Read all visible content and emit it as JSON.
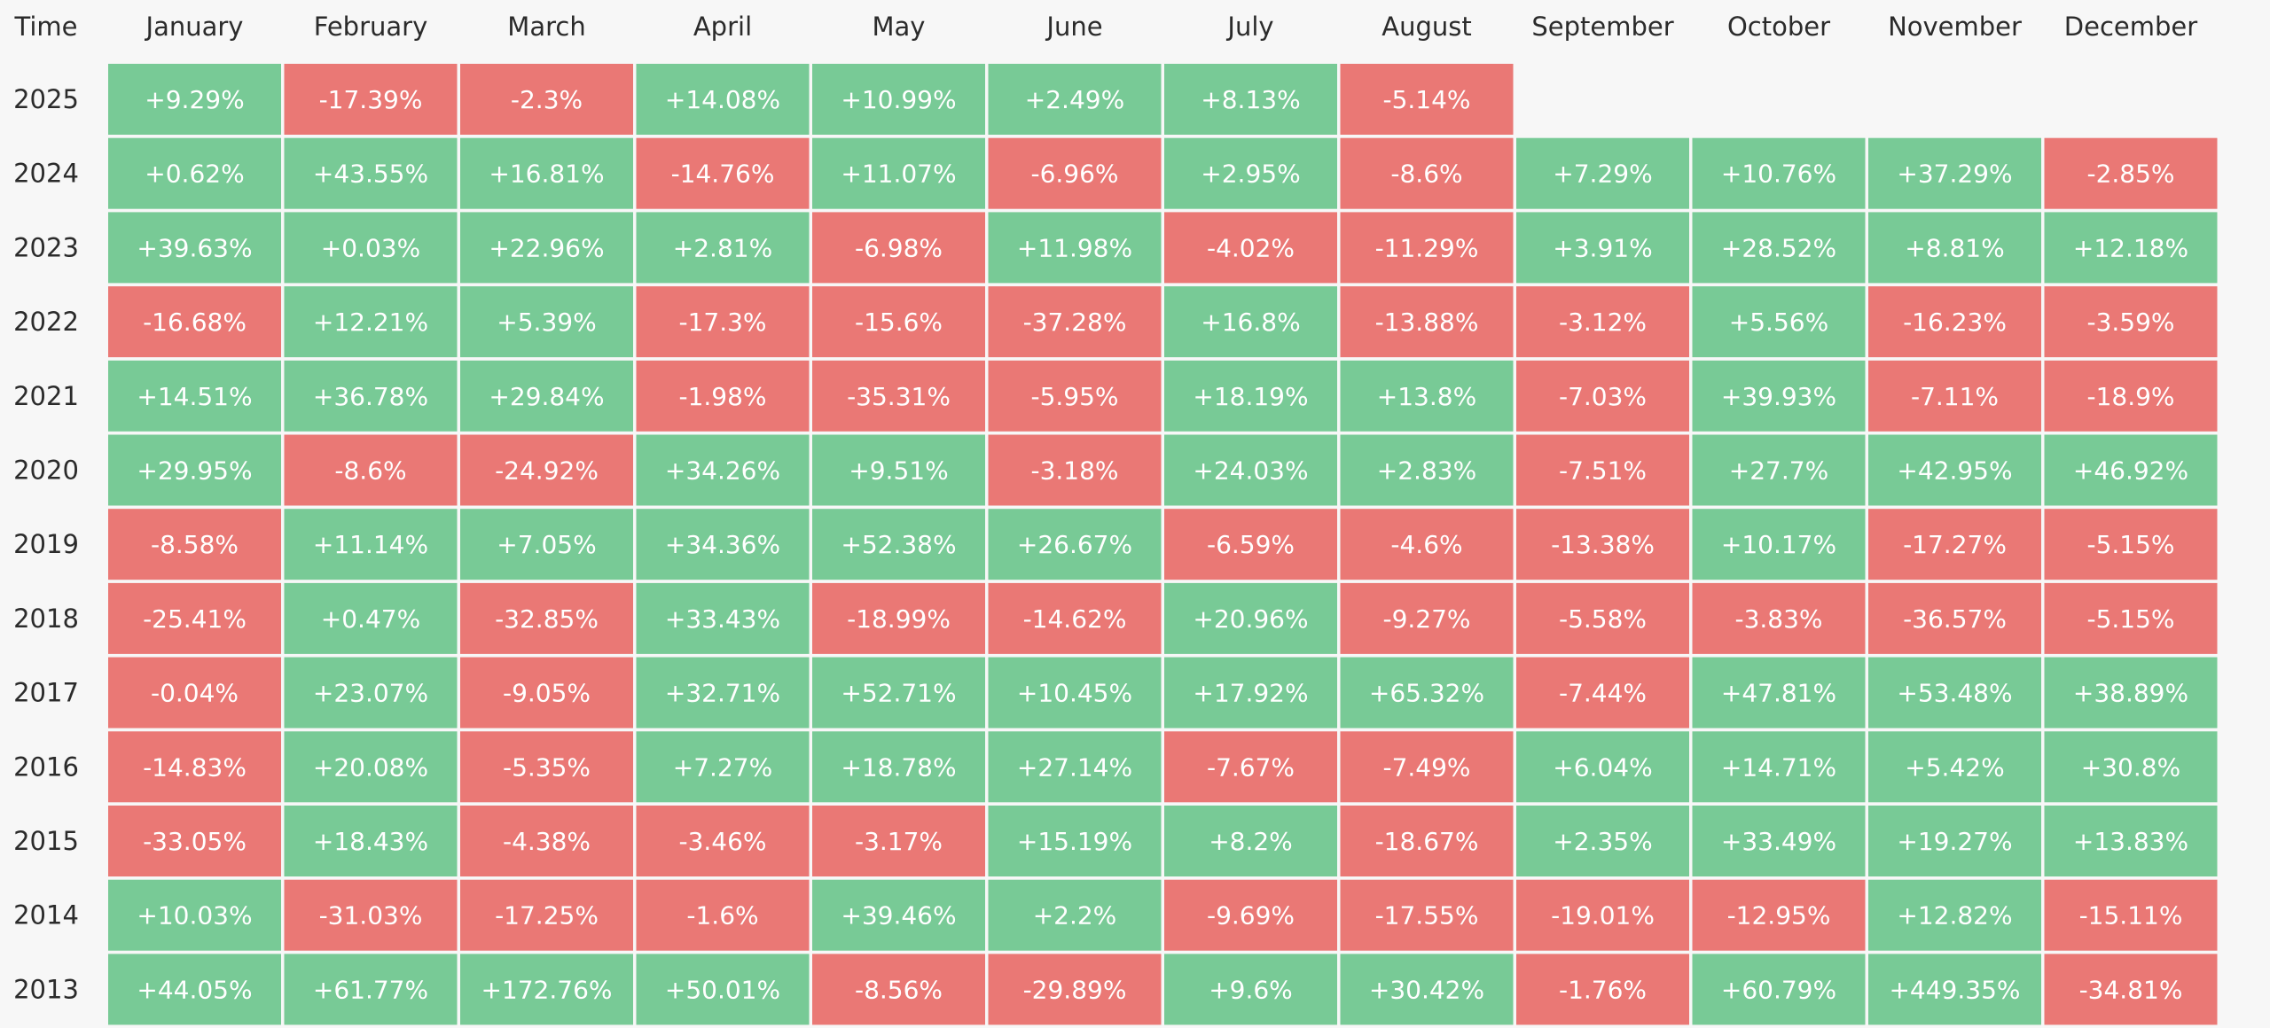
{
  "chart_data": {
    "type": "heatmap",
    "corner_label": "Time",
    "columns": [
      "January",
      "February",
      "March",
      "April",
      "May",
      "June",
      "July",
      "August",
      "September",
      "October",
      "November",
      "December"
    ],
    "rows": [
      "2025",
      "2024",
      "2023",
      "2022",
      "2021",
      "2020",
      "2019",
      "2018",
      "2017",
      "2016",
      "2015",
      "2014",
      "2013"
    ],
    "values": [
      [
        "+9.29%",
        "-17.39%",
        "-2.3%",
        "+14.08%",
        "+10.99%",
        "+2.49%",
        "+8.13%",
        "-5.14%",
        "",
        "",
        "",
        ""
      ],
      [
        "+0.62%",
        "+43.55%",
        "+16.81%",
        "-14.76%",
        "+11.07%",
        "-6.96%",
        "+2.95%",
        "-8.6%",
        "+7.29%",
        "+10.76%",
        "+37.29%",
        "-2.85%"
      ],
      [
        "+39.63%",
        "+0.03%",
        "+22.96%",
        "+2.81%",
        "-6.98%",
        "+11.98%",
        "-4.02%",
        "-11.29%",
        "+3.91%",
        "+28.52%",
        "+8.81%",
        "+12.18%"
      ],
      [
        "-16.68%",
        "+12.21%",
        "+5.39%",
        "-17.3%",
        "-15.6%",
        "-37.28%",
        "+16.8%",
        "-13.88%",
        "-3.12%",
        "+5.56%",
        "-16.23%",
        "-3.59%"
      ],
      [
        "+14.51%",
        "+36.78%",
        "+29.84%",
        "-1.98%",
        "-35.31%",
        "-5.95%",
        "+18.19%",
        "+13.8%",
        "-7.03%",
        "+39.93%",
        "-7.11%",
        "-18.9%"
      ],
      [
        "+29.95%",
        "-8.6%",
        "-24.92%",
        "+34.26%",
        "+9.51%",
        "-3.18%",
        "+24.03%",
        "+2.83%",
        "-7.51%",
        "+27.7%",
        "+42.95%",
        "+46.92%"
      ],
      [
        "-8.58%",
        "+11.14%",
        "+7.05%",
        "+34.36%",
        "+52.38%",
        "+26.67%",
        "-6.59%",
        "-4.6%",
        "-13.38%",
        "+10.17%",
        "-17.27%",
        "-5.15%"
      ],
      [
        "-25.41%",
        "+0.47%",
        "-32.85%",
        "+33.43%",
        "-18.99%",
        "-14.62%",
        "+20.96%",
        "-9.27%",
        "-5.58%",
        "-3.83%",
        "-36.57%",
        "-5.15%"
      ],
      [
        "-0.04%",
        "+23.07%",
        "-9.05%",
        "+32.71%",
        "+52.71%",
        "+10.45%",
        "+17.92%",
        "+65.32%",
        "-7.44%",
        "+47.81%",
        "+53.48%",
        "+38.89%"
      ],
      [
        "-14.83%",
        "+20.08%",
        "-5.35%",
        "+7.27%",
        "+18.78%",
        "+27.14%",
        "-7.67%",
        "-7.49%",
        "+6.04%",
        "+14.71%",
        "+5.42%",
        "+30.8%"
      ],
      [
        "-33.05%",
        "+18.43%",
        "-4.38%",
        "-3.46%",
        "-3.17%",
        "+15.19%",
        "+8.2%",
        "-18.67%",
        "+2.35%",
        "+33.49%",
        "+19.27%",
        "+13.83%"
      ],
      [
        "+10.03%",
        "-31.03%",
        "-17.25%",
        "-1.6%",
        "+39.46%",
        "+2.2%",
        "-9.69%",
        "-17.55%",
        "-19.01%",
        "-12.95%",
        "+12.82%",
        "-15.11%"
      ],
      [
        "+44.05%",
        "+61.77%",
        "+172.76%",
        "+50.01%",
        "-8.56%",
        "-29.89%",
        "+9.6%",
        "+30.42%",
        "-1.76%",
        "+60.79%",
        "+449.35%",
        "-34.81%"
      ]
    ],
    "colors": {
      "positive": "#78ca96",
      "negative": "#ea7875",
      "background": "#f7f7f7",
      "text": "#ffffff",
      "header_text": "#2b2b2b"
    }
  }
}
